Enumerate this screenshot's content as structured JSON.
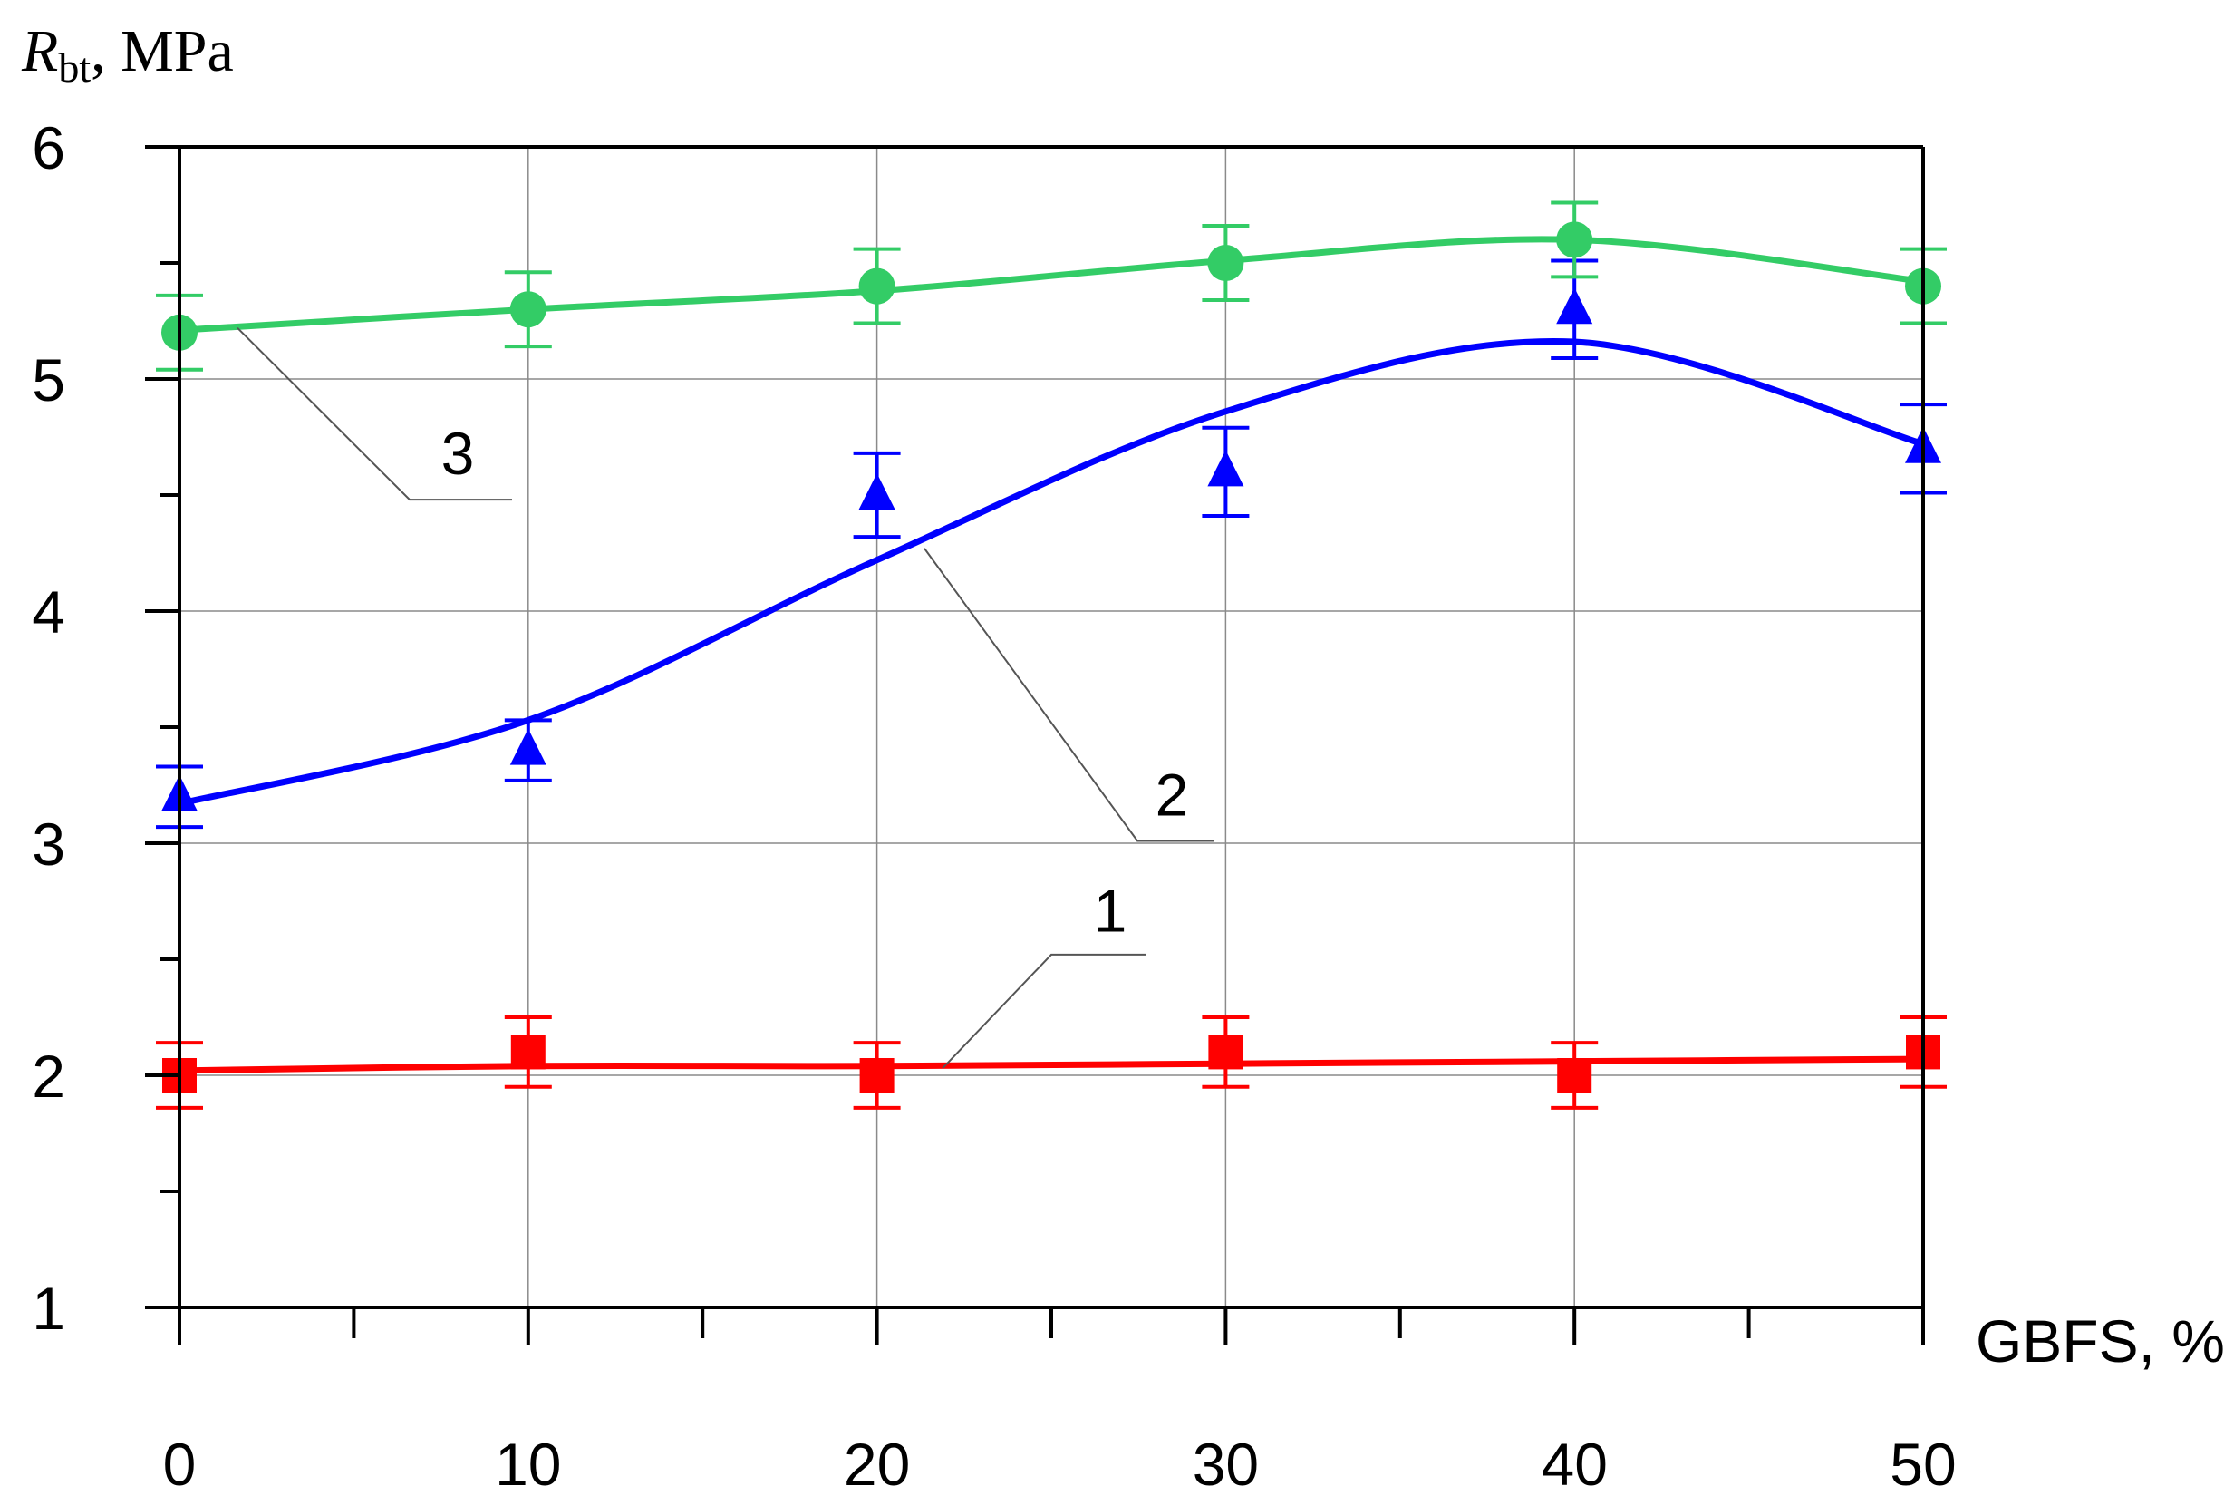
{
  "chart_data": {
    "type": "line",
    "ylabel": {
      "symbol": "R",
      "subscript": "bt",
      "unit": ", MPa"
    },
    "xlabel": "GBFS, %",
    "xlim": [
      0,
      50
    ],
    "ylim": [
      1,
      6
    ],
    "x_ticks": [
      0,
      10,
      20,
      30,
      40,
      50
    ],
    "y_ticks": [
      1,
      2,
      3,
      4,
      5,
      6
    ],
    "grid": true,
    "x": [
      0,
      10,
      20,
      30,
      40,
      50
    ],
    "series": [
      {
        "name": "1",
        "color": "#ff0000",
        "marker": "square",
        "values": [
          2.0,
          2.1,
          2.0,
          2.1,
          2.0,
          2.1
        ],
        "errors": [
          0.14,
          0.15,
          0.14,
          0.15,
          0.14,
          0.15
        ],
        "fit": [
          2.02,
          2.04,
          2.04,
          2.05,
          2.06,
          2.07
        ]
      },
      {
        "name": "2",
        "color": "#0000ff",
        "marker": "triangle",
        "values": [
          3.2,
          3.4,
          4.5,
          4.6,
          5.3,
          4.7
        ],
        "errors": [
          0.13,
          0.13,
          0.18,
          0.19,
          0.21,
          0.19
        ],
        "fit": [
          3.17,
          3.53,
          4.22,
          4.86,
          5.16,
          4.72
        ]
      },
      {
        "name": "3",
        "color": "#33cc66",
        "marker": "circle",
        "values": [
          5.2,
          5.3,
          5.4,
          5.5,
          5.6,
          5.4
        ],
        "errors": [
          0.16,
          0.16,
          0.16,
          0.16,
          0.16,
          0.16
        ],
        "fit": [
          5.21,
          5.3,
          5.38,
          5.51,
          5.6,
          5.42
        ]
      }
    ]
  }
}
